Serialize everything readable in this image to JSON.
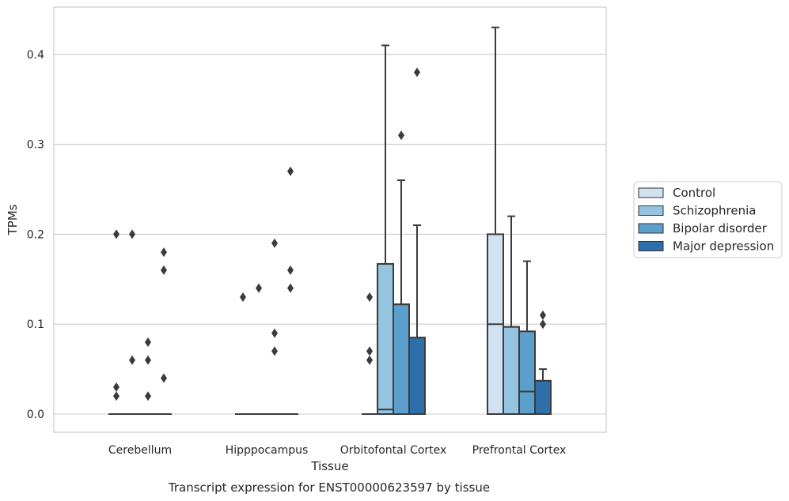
{
  "chart_data": {
    "type": "box",
    "xlabel": "Tissue",
    "ylabel": "TPMs",
    "caption": "Transcript expression for ENST00000623597 by tissue",
    "ylim": [
      -0.02,
      0.455
    ],
    "yticks": [
      "0.0",
      "0.1",
      "0.2",
      "0.3",
      "0.4"
    ],
    "ytick_values": [
      0.0,
      0.1,
      0.2,
      0.3,
      0.4
    ],
    "grid": "horizontal",
    "legend_position": "right",
    "categories": [
      "Cerebellum",
      "Hipppocampus",
      "Orbitofontal Cortex",
      "Prefrontal Cortex"
    ],
    "series": [
      {
        "name": "Control",
        "color": "#d0e1f2",
        "boxes": [
          {
            "min": 0,
            "q1": 0,
            "median": 0,
            "q3": 0,
            "max": 0,
            "outliers": [
              0.02,
              0.03,
              0.2
            ]
          },
          {
            "min": 0,
            "q1": 0,
            "median": 0,
            "q3": 0,
            "max": 0,
            "outliers": [
              0.13
            ]
          },
          {
            "min": 0,
            "q1": 0,
            "median": 0,
            "q3": 0,
            "max": 0,
            "outliers": [
              0.06,
              0.07,
              0.13
            ]
          },
          {
            "min": 0,
            "q1": 0,
            "median": 0.1,
            "q3": 0.2,
            "max": 0.43,
            "outliers": []
          }
        ]
      },
      {
        "name": "Schizophrenia",
        "color": "#94c4df",
        "boxes": [
          {
            "min": 0,
            "q1": 0,
            "median": 0,
            "q3": 0,
            "max": 0,
            "outliers": [
              0.06,
              0.2
            ]
          },
          {
            "min": 0,
            "q1": 0,
            "median": 0,
            "q3": 0,
            "max": 0,
            "outliers": [
              0.14
            ]
          },
          {
            "min": 0,
            "q1": 0,
            "median": 0.005,
            "q3": 0.167,
            "max": 0.41,
            "outliers": []
          },
          {
            "min": 0,
            "q1": 0,
            "median": 0.097,
            "q3": 0.097,
            "max": 0.22,
            "outliers": []
          }
        ]
      },
      {
        "name": "Bipolar disorder",
        "color": "#5c9fcc",
        "boxes": [
          {
            "min": 0,
            "q1": 0,
            "median": 0,
            "q3": 0,
            "max": 0,
            "outliers": [
              0.02,
              0.06,
              0.08
            ]
          },
          {
            "min": 0,
            "q1": 0,
            "median": 0,
            "q3": 0,
            "max": 0,
            "outliers": [
              0.07,
              0.09,
              0.19
            ]
          },
          {
            "min": 0,
            "q1": 0,
            "median": 0.122,
            "q3": 0.122,
            "max": 0.26,
            "outliers": [
              0.31
            ]
          },
          {
            "min": 0,
            "q1": 0,
            "median": 0.025,
            "q3": 0.092,
            "max": 0.17,
            "outliers": []
          }
        ]
      },
      {
        "name": "Major depression",
        "color": "#2c6fab",
        "boxes": [
          {
            "min": 0,
            "q1": 0,
            "median": 0,
            "q3": 0,
            "max": 0,
            "outliers": [
              0.04,
              0.16,
              0.18
            ]
          },
          {
            "min": 0,
            "q1": 0,
            "median": 0,
            "q3": 0,
            "max": 0,
            "outliers": [
              0.14,
              0.16,
              0.27
            ]
          },
          {
            "min": 0,
            "q1": 0,
            "median": 0.085,
            "q3": 0.085,
            "max": 0.21,
            "outliers": [
              0.38
            ]
          },
          {
            "min": 0,
            "q1": 0,
            "median": 0.037,
            "q3": 0.037,
            "max": 0.05,
            "outliers": [
              0.1,
              0.11
            ]
          }
        ]
      }
    ]
  }
}
